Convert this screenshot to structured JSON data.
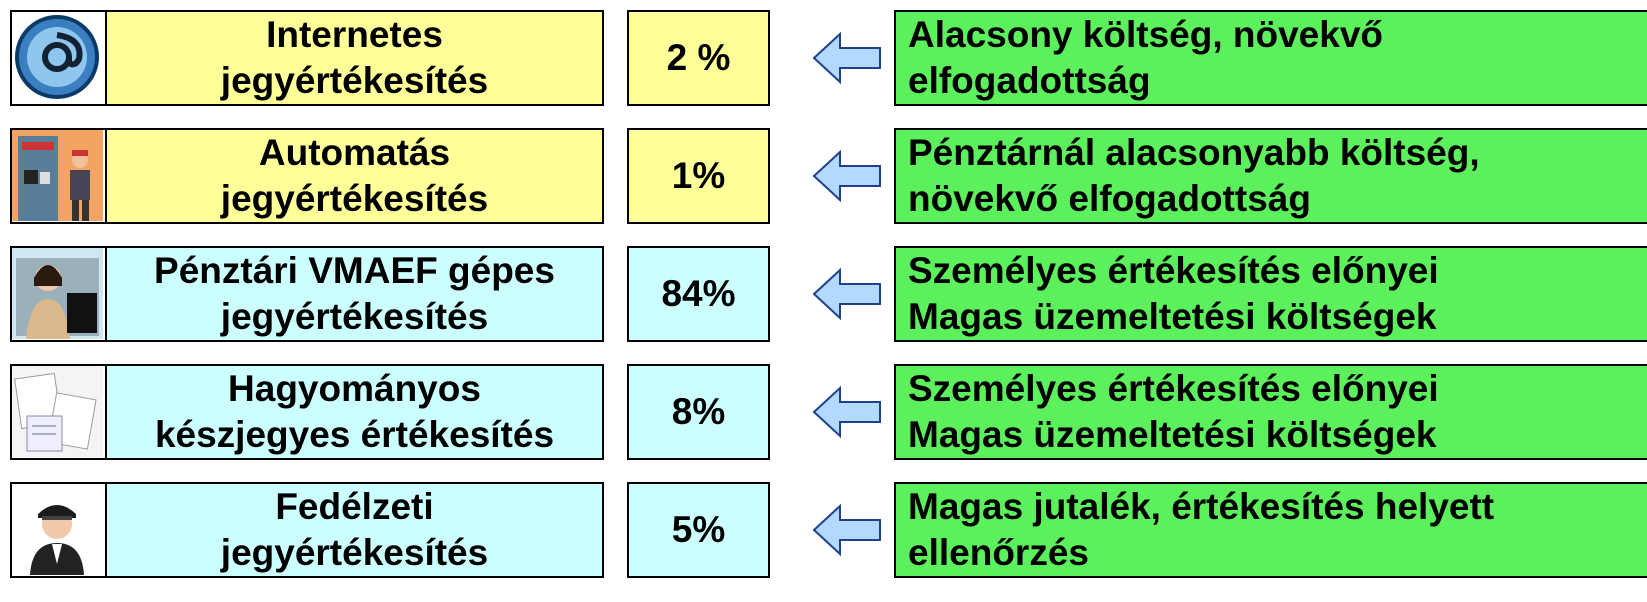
{
  "rows": [
    {
      "label": [
        "Internetes",
        "jegyértékesítés"
      ],
      "share": "2 %",
      "note": [
        "Alacsony költség, növekvő",
        "elfogadottság"
      ]
    },
    {
      "label": [
        "Automatás",
        "jegyértékesítés"
      ],
      "share": "1%",
      "note": [
        "Pénztárnál alacsonyabb költség,",
        "növekvő elfogadottság"
      ]
    },
    {
      "label": [
        "Pénztári VMAEF gépes",
        "jegyértékesítés"
      ],
      "share": "84%",
      "note": [
        "Személyes értékesítés előnyei",
        "Magas üzemeltetési költségek"
      ]
    },
    {
      "label": [
        "Hagyományos",
        "készjegyes értékesítés"
      ],
      "share": "8%",
      "note": [
        "Személyes értékesítés előnyei",
        "Magas üzemeltetési költségek"
      ]
    },
    {
      "label": [
        "Fedélzeti",
        "jegyértékesítés"
      ],
      "share": "5%",
      "note": [
        "Magas jutalék, értékesítés helyett",
        "ellenőrzés"
      ]
    }
  ]
}
